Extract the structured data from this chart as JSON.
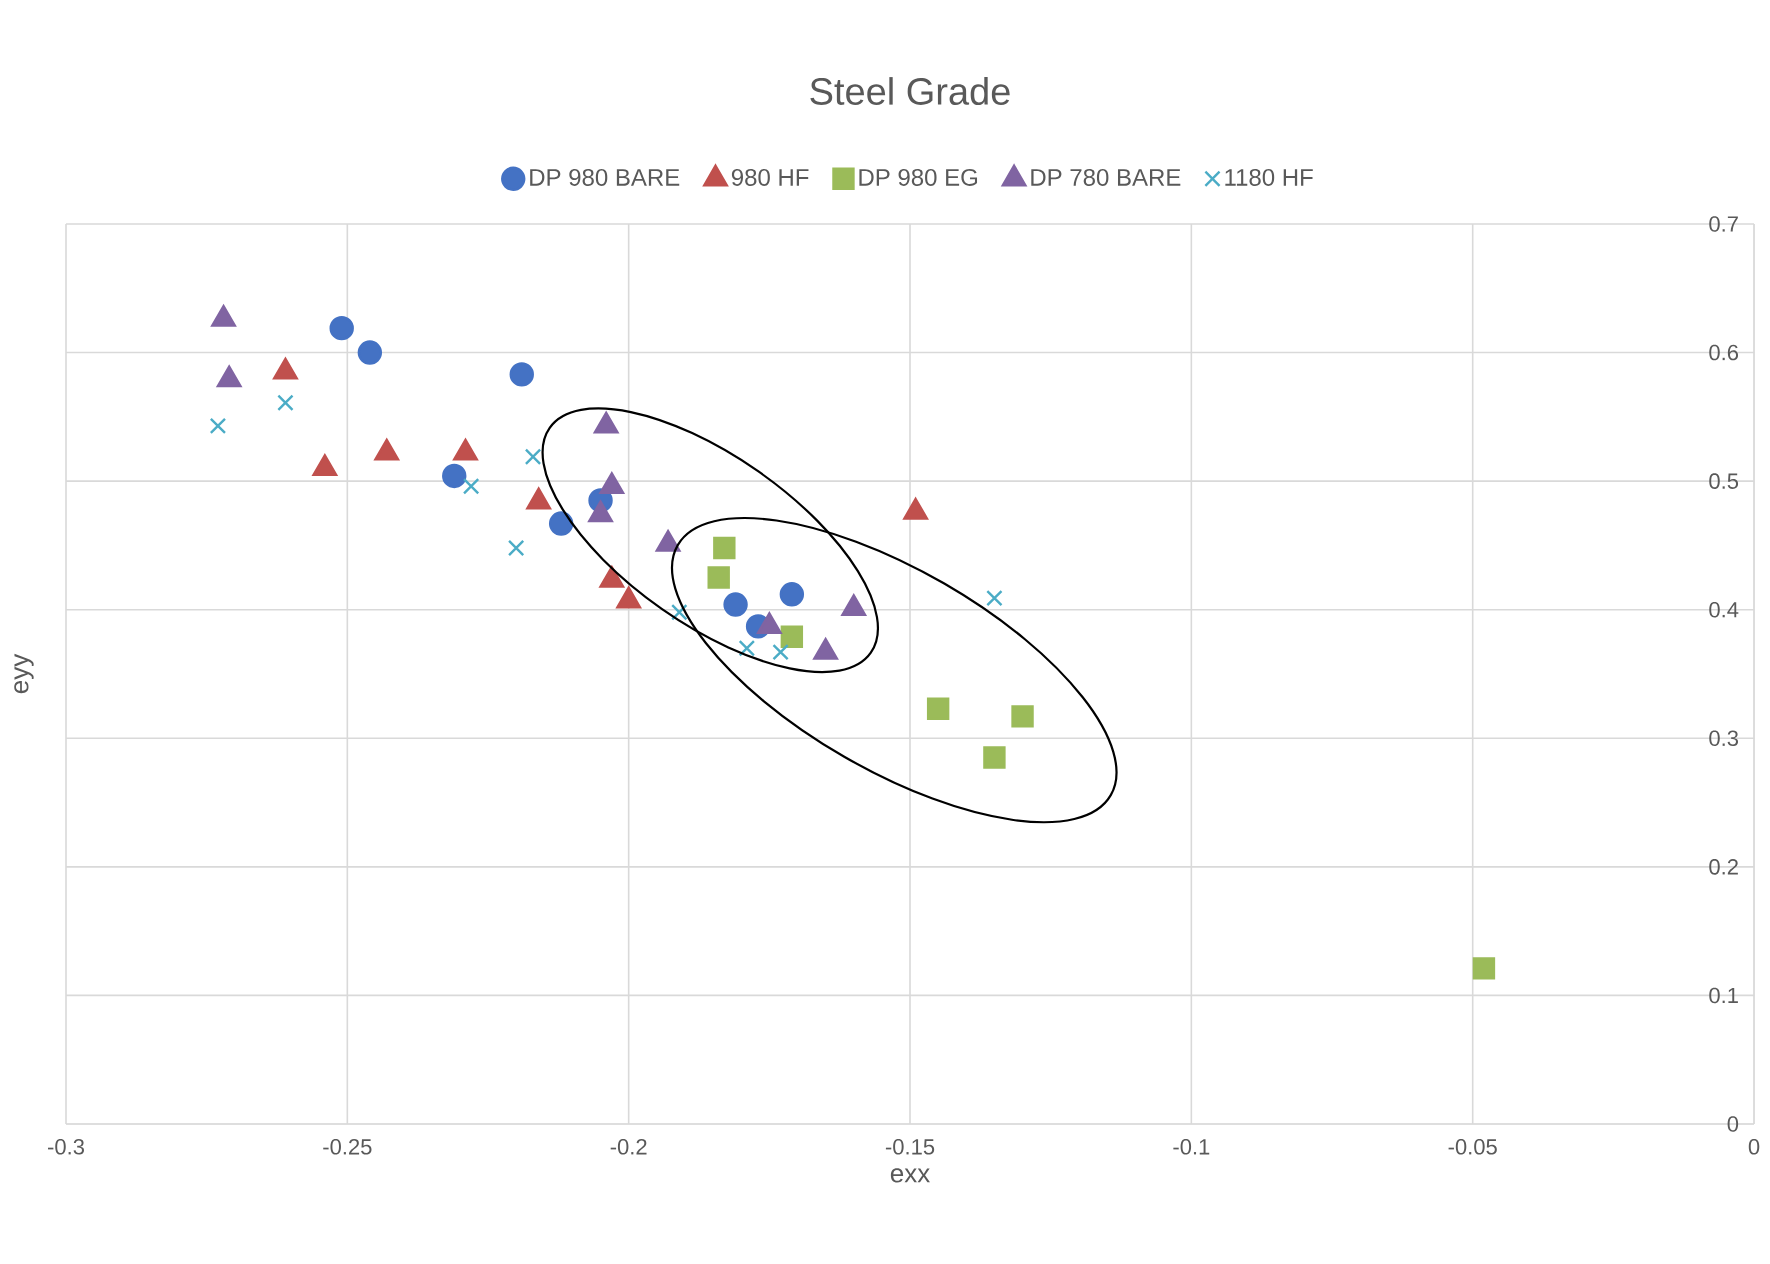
{
  "chart_data": {
    "type": "scatter",
    "title": "Steel Grade",
    "xlabel": "exx",
    "ylabel": "eyy",
    "xlim": [
      -0.3,
      0
    ],
    "ylim": [
      0,
      0.7
    ],
    "xticks": [
      -0.3,
      -0.25,
      -0.2,
      -0.15,
      -0.1,
      -0.05,
      0
    ],
    "yticks": [
      0,
      0.1,
      0.2,
      0.3,
      0.4,
      0.5,
      0.6,
      0.7
    ],
    "grid": true,
    "legend": "top",
    "series": [
      {
        "name": "DP 980 BARE",
        "color": "#4472c4",
        "marker": "circle",
        "x": [
          -0.251,
          -0.246,
          -0.219,
          -0.231,
          -0.212,
          -0.205,
          -0.181,
          -0.177,
          -0.171
        ],
        "values": [
          0.619,
          0.6,
          0.583,
          0.504,
          0.467,
          0.485,
          0.404,
          0.387,
          0.412
        ]
      },
      {
        "name": "980 HF",
        "color": "#c0504d",
        "marker": "triangle",
        "x": [
          -0.261,
          -0.254,
          -0.243,
          -0.229,
          -0.216,
          -0.203,
          -0.2,
          -0.149
        ],
        "values": [
          0.585,
          0.51,
          0.522,
          0.522,
          0.484,
          0.423,
          0.407,
          0.476
        ]
      },
      {
        "name": "DP 980 EG",
        "color": "#9bbb59",
        "marker": "square",
        "x": [
          -0.183,
          -0.184,
          -0.171,
          -0.145,
          -0.13,
          -0.135,
          -0.048
        ],
        "values": [
          0.448,
          0.425,
          0.379,
          0.323,
          0.317,
          0.285,
          0.121
        ]
      },
      {
        "name": "DP 780 BARE",
        "color": "#8064a2",
        "marker": "triangle",
        "x": [
          -0.272,
          -0.271,
          -0.204,
          -0.203,
          -0.205,
          -0.193,
          -0.16,
          -0.175,
          -0.165
        ],
        "values": [
          0.626,
          0.579,
          0.543,
          0.496,
          0.474,
          0.451,
          0.401,
          0.387,
          0.367
        ]
      },
      {
        "name": "1180 HF",
        "color": "#4bacc6",
        "marker": "cross",
        "x": [
          -0.273,
          -0.261,
          -0.228,
          -0.22,
          -0.217,
          -0.191,
          -0.179,
          -0.173,
          -0.135
        ],
        "values": [
          0.543,
          0.561,
          0.496,
          0.448,
          0.519,
          0.398,
          0.37,
          0.367,
          0.409
        ]
      }
    ]
  }
}
